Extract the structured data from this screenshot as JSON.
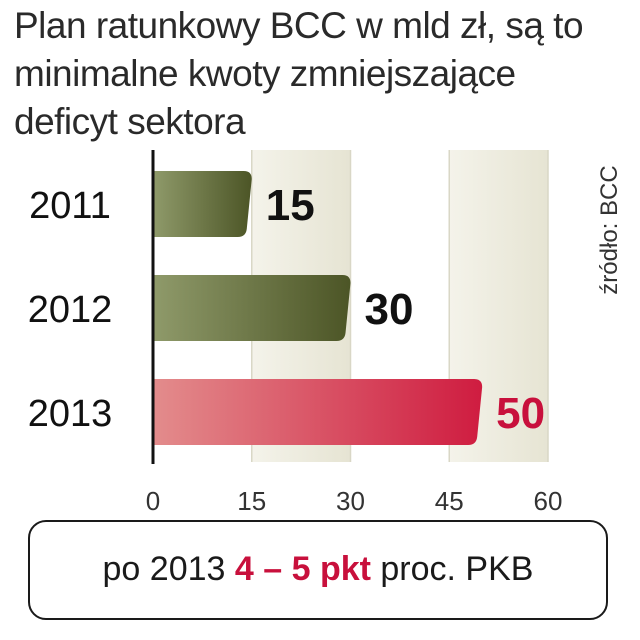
{
  "title_lines": [
    "Plan ratunkowy BCC w mld zł, są to",
    "minimalne kwoty zmniejszające",
    "deficyt sektora"
  ],
  "source": "źródło: BCC",
  "chart_data": {
    "type": "bar",
    "orientation": "horizontal",
    "categories": [
      "2011",
      "2012",
      "2013"
    ],
    "values": [
      15,
      30,
      50
    ],
    "value_labels": [
      "15",
      "30",
      "50"
    ],
    "xlim": [
      0,
      60
    ],
    "xticks": [
      "0",
      "15",
      "30",
      "45",
      "60"
    ],
    "tick_values": [
      0,
      15,
      30,
      45,
      60
    ],
    "bar_colors": [
      "#5e6a33",
      "#5e6a33",
      "#d8324d"
    ],
    "label_colors": [
      "#111111",
      "#111111",
      "#c8103c"
    ],
    "grid": true
  },
  "footer": {
    "prefix": "po 2013 ",
    "highlight": "4 – 5 pkt",
    "suffix": " proc. PKB"
  }
}
